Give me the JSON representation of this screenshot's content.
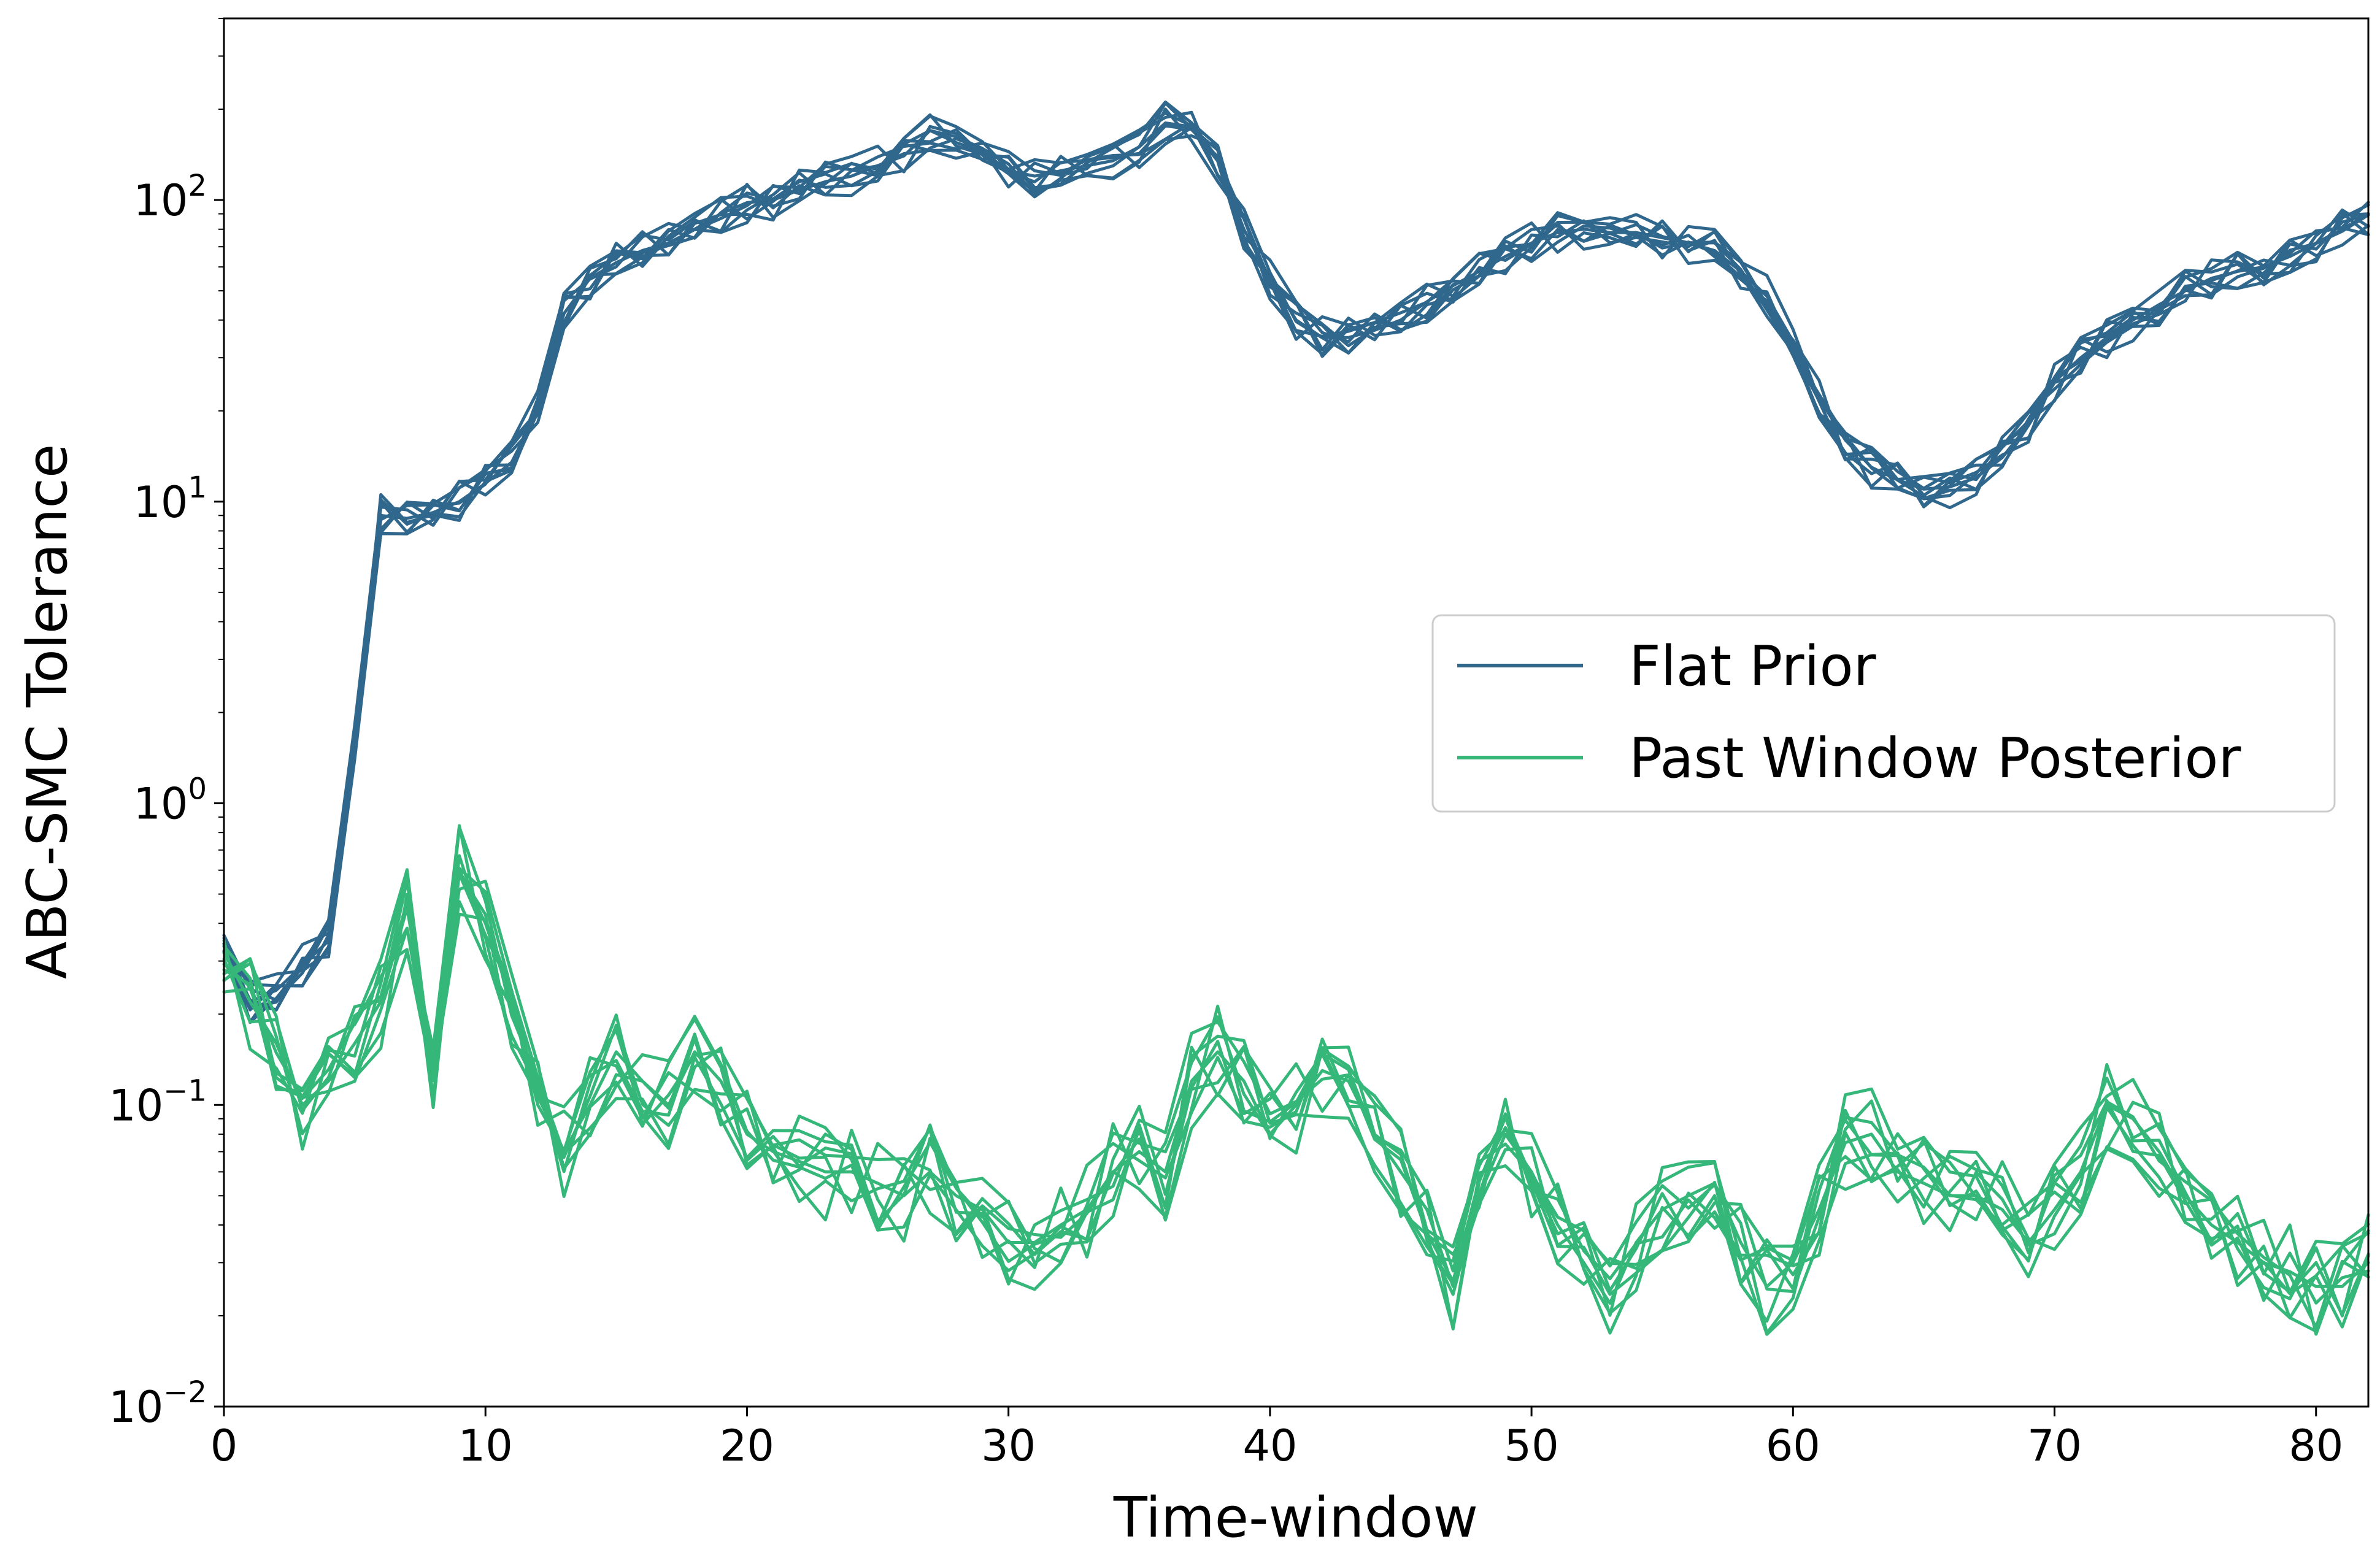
{
  "chart_data": {
    "type": "line",
    "title": "",
    "xlabel": "Time-window",
    "ylabel": "ABC-SMC Tolerance",
    "xlim": [
      0,
      82
    ],
    "ylim": [
      0.01,
      400
    ],
    "yscale": "log",
    "grid": false,
    "legend_position": "center-right",
    "x_ticks": [
      0,
      10,
      20,
      30,
      40,
      50,
      60,
      70,
      80
    ],
    "y_ticks": [
      {
        "value": 0.01,
        "base": "10",
        "exp": "−2"
      },
      {
        "value": 0.1,
        "base": "10",
        "exp": "−1"
      },
      {
        "value": 1,
        "base": "10",
        "exp": "0"
      },
      {
        "value": 10,
        "base": "10",
        "exp": "1"
      },
      {
        "value": 100,
        "base": "10",
        "exp": "2"
      }
    ],
    "series": [
      {
        "name": "Flat Prior",
        "color": "#30678d",
        "runs": 10,
        "x": [
          0,
          1,
          2,
          3,
          4,
          5,
          6,
          7,
          8,
          9,
          10,
          11,
          12,
          13,
          14,
          15,
          16,
          17,
          18,
          19,
          20,
          21,
          22,
          23,
          24,
          25,
          26,
          27,
          28,
          29,
          30,
          31,
          32,
          33,
          34,
          35,
          36,
          37,
          38,
          39,
          40,
          41,
          42,
          43,
          44,
          45,
          46,
          47,
          48,
          49,
          50,
          51,
          52,
          53,
          54,
          55,
          56,
          57,
          58,
          59,
          60,
          61,
          62,
          63,
          64,
          65,
          66,
          67,
          68,
          69,
          70,
          71,
          72,
          73,
          74,
          75,
          76,
          77,
          78,
          79,
          80,
          81,
          82
        ],
        "values": [
          0.32,
          0.22,
          0.24,
          0.29,
          0.35,
          1.6,
          9,
          8.8,
          9.2,
          10,
          11.5,
          13.5,
          20,
          42,
          55,
          62,
          68,
          72,
          80,
          90,
          98,
          100,
          108,
          115,
          120,
          130,
          140,
          170,
          155,
          145,
          125,
          120,
          125,
          130,
          135,
          150,
          180,
          175,
          135,
          80,
          55,
          40,
          35,
          35,
          37,
          40,
          46,
          52,
          58,
          65,
          72,
          78,
          80,
          78,
          78,
          75,
          72,
          68,
          58,
          48,
          34,
          22,
          16,
          13,
          11.8,
          11,
          11.2,
          12,
          14,
          18,
          25,
          30,
          35,
          40,
          45,
          50,
          55,
          58,
          60,
          65,
          72,
          80,
          90
        ]
      },
      {
        "name": "Past Window Posterior",
        "color": "#35b779",
        "runs": 10,
        "x": [
          0,
          1,
          2,
          3,
          4,
          5,
          6,
          7,
          8,
          9,
          10,
          11,
          12,
          13,
          14,
          15,
          16,
          17,
          18,
          19,
          20,
          21,
          22,
          23,
          24,
          25,
          26,
          27,
          28,
          29,
          30,
          31,
          32,
          33,
          34,
          35,
          36,
          37,
          38,
          39,
          40,
          41,
          42,
          43,
          44,
          45,
          46,
          47,
          48,
          49,
          50,
          51,
          52,
          53,
          54,
          55,
          56,
          57,
          58,
          59,
          60,
          61,
          62,
          63,
          64,
          65,
          66,
          67,
          68,
          69,
          70,
          71,
          72,
          73,
          74,
          75,
          76,
          77,
          78,
          79,
          80,
          81,
          82
        ],
        "values": [
          0.32,
          0.22,
          0.16,
          0.1,
          0.12,
          0.16,
          0.22,
          0.45,
          0.14,
          0.6,
          0.4,
          0.22,
          0.1,
          0.07,
          0.1,
          0.15,
          0.12,
          0.1,
          0.15,
          0.12,
          0.08,
          0.07,
          0.065,
          0.06,
          0.06,
          0.055,
          0.05,
          0.06,
          0.05,
          0.045,
          0.035,
          0.035,
          0.04,
          0.045,
          0.06,
          0.07,
          0.06,
          0.12,
          0.15,
          0.12,
          0.08,
          0.1,
          0.13,
          0.12,
          0.08,
          0.06,
          0.045,
          0.025,
          0.05,
          0.08,
          0.06,
          0.04,
          0.03,
          0.022,
          0.035,
          0.045,
          0.05,
          0.055,
          0.035,
          0.025,
          0.03,
          0.045,
          0.075,
          0.08,
          0.06,
          0.055,
          0.05,
          0.05,
          0.045,
          0.035,
          0.045,
          0.06,
          0.1,
          0.09,
          0.07,
          0.05,
          0.04,
          0.035,
          0.03,
          0.028,
          0.025,
          0.025,
          0.03
        ]
      }
    ]
  }
}
